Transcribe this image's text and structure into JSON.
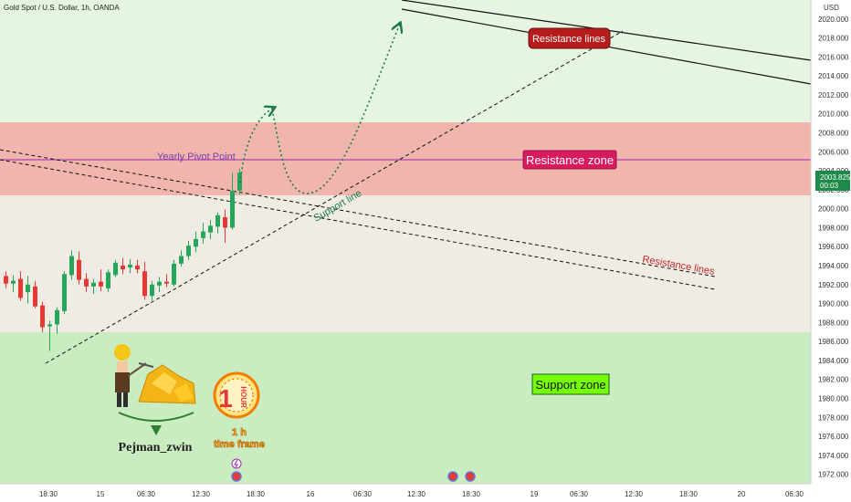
{
  "header": {
    "symbol_title": "Gold Spot / U.S. Dollar, 1h, OANDA",
    "currency": "USD"
  },
  "price_axis": {
    "ticks": [
      "2020.000",
      "2018.000",
      "2016.000",
      "2014.000",
      "2012.000",
      "2010.000",
      "2008.000",
      "2006.000",
      "2004.000",
      "2002.000",
      "2000.000",
      "1998.000",
      "1996.000",
      "1994.000",
      "1992.000",
      "1990.000",
      "1988.000",
      "1986.000",
      "1984.000",
      "1982.000",
      "1980.000",
      "1978.000",
      "1976.000",
      "1974.000",
      "1972.000"
    ],
    "current_price": "2003.825",
    "countdown": "00:03"
  },
  "time_axis": {
    "ticks": [
      "18:30",
      "15",
      "06:30",
      "12:30",
      "18:30",
      "16",
      "06:30",
      "12:30",
      "18:30",
      "19",
      "06:30",
      "12:30",
      "18:30",
      "20",
      "06:30"
    ]
  },
  "annotations": {
    "yearly_pivot": "Yearly Pivot Point",
    "resistance_zone": "Resistance zone",
    "support_zone": "Support zone",
    "resistance_lines_top": "Resistance lines",
    "resistance_lines_lower": "Resistance lines",
    "support_line": "Support line",
    "author": "Pejman_zwin",
    "timeframe_badge_text": "HOUR",
    "timeframe_badge_number": "1",
    "timeframe_caption_1": "1 h",
    "timeframe_caption_2": "time frame"
  },
  "colors": {
    "resistance_zone": "#f0b5ad",
    "support_zone": "#c9ecc0",
    "pivot_line": "#9c27b0",
    "bull_candle": "#26a65b",
    "bear_candle": "#e53935",
    "resistance_label_bg": "#b71c1c",
    "resistance_zone_label_bg": "#d81b60",
    "support_zone_label_bg": "#76ff03",
    "projection": "#1b7a4a"
  },
  "chart_data": {
    "type": "candlestick",
    "instrument": "Gold Spot / U.S. Dollar",
    "interval": "1h",
    "broker": "OANDA",
    "ylim": [
      1971,
      2022
    ],
    "zones": [
      {
        "name": "Resistance zone",
        "from": 2001.9,
        "to": 2009.6
      },
      {
        "name": "Support zone",
        "from": 1971,
        "to": 1987.2
      }
    ],
    "horizontal_lines": [
      {
        "name": "Yearly Pivot Point",
        "price": 2005.6
      }
    ],
    "candles": [
      {
        "o": 1992.9,
        "h": 1993.4,
        "l": 1991.6,
        "c": 1992.1
      },
      {
        "o": 1992.1,
        "h": 1993.0,
        "l": 1991.2,
        "c": 1992.4
      },
      {
        "o": 1992.6,
        "h": 1993.4,
        "l": 1990.3,
        "c": 1990.6
      },
      {
        "o": 1991.2,
        "h": 1992.9,
        "l": 1990.0,
        "c": 1992.0
      },
      {
        "o": 1991.8,
        "h": 1992.4,
        "l": 1989.5,
        "c": 1989.7
      },
      {
        "o": 1989.8,
        "h": 1990.2,
        "l": 1987.0,
        "c": 1987.5
      },
      {
        "o": 1987.6,
        "h": 1988.2,
        "l": 1985.0,
        "c": 1987.8
      },
      {
        "o": 1987.8,
        "h": 1989.6,
        "l": 1986.8,
        "c": 1989.3
      },
      {
        "o": 1989.2,
        "h": 1993.4,
        "l": 1988.9,
        "c": 1993.1
      },
      {
        "o": 1993.0,
        "h": 1995.6,
        "l": 1992.5,
        "c": 1995.0
      },
      {
        "o": 1994.6,
        "h": 1995.5,
        "l": 1992.0,
        "c": 1992.5
      },
      {
        "o": 1992.6,
        "h": 1993.2,
        "l": 1991.2,
        "c": 1991.8
      },
      {
        "o": 1991.8,
        "h": 1992.6,
        "l": 1991.0,
        "c": 1992.2
      },
      {
        "o": 1992.3,
        "h": 1993.6,
        "l": 1991.3,
        "c": 1991.8
      },
      {
        "o": 1991.6,
        "h": 1993.6,
        "l": 1991.2,
        "c": 1993.3
      },
      {
        "o": 1993.0,
        "h": 1994.6,
        "l": 1992.8,
        "c": 1994.3
      },
      {
        "o": 1994.0,
        "h": 1994.8,
        "l": 1993.1,
        "c": 1993.6
      },
      {
        "o": 1993.8,
        "h": 1994.7,
        "l": 1993.2,
        "c": 1994.1
      },
      {
        "o": 1994.0,
        "h": 1994.6,
        "l": 1993.2,
        "c": 1993.6
      },
      {
        "o": 1993.4,
        "h": 1994.4,
        "l": 1990.4,
        "c": 1990.8
      },
      {
        "o": 1990.8,
        "h": 1992.4,
        "l": 1990.3,
        "c": 1992.0
      },
      {
        "o": 1991.9,
        "h": 1992.8,
        "l": 1991.2,
        "c": 1992.3
      },
      {
        "o": 1992.3,
        "h": 1993.1,
        "l": 1991.7,
        "c": 1992.1
      },
      {
        "o": 1992.0,
        "h": 1994.6,
        "l": 1991.8,
        "c": 1994.2
      },
      {
        "o": 1994.2,
        "h": 1995.6,
        "l": 1993.9,
        "c": 1995.0
      },
      {
        "o": 1995.0,
        "h": 1996.6,
        "l": 1994.6,
        "c": 1996.1
      },
      {
        "o": 1996.0,
        "h": 1997.6,
        "l": 1995.4,
        "c": 1996.8
      },
      {
        "o": 1996.9,
        "h": 1998.5,
        "l": 1996.3,
        "c": 1997.6
      },
      {
        "o": 1997.5,
        "h": 1998.8,
        "l": 1996.8,
        "c": 1998.2
      },
      {
        "o": 1998.1,
        "h": 1999.6,
        "l": 1997.4,
        "c": 1999.3
      },
      {
        "o": 1999.1,
        "h": 1999.9,
        "l": 1996.4,
        "c": 1998.0
      },
      {
        "o": 1998.0,
        "h": 2003.8,
        "l": 1997.8,
        "c": 2001.9
      },
      {
        "o": 2001.9,
        "h": 2004.2,
        "l": 2001.5,
        "c": 2003.8
      }
    ],
    "trendlines": [
      {
        "name": "Resistance lines",
        "style": "solid",
        "points": [
          [
            "t0",
            2026.1
          ],
          [
            "t_end",
            2016.1
          ]
        ]
      },
      {
        "name": "Resistance lines",
        "style": "solid",
        "points": [
          [
            "t0",
            2023.0
          ],
          [
            "t_end",
            2013.6
          ]
        ]
      },
      {
        "name": "Support line",
        "style": "dashed",
        "points": [
          [
            "t0",
            1984.5
          ],
          [
            "t_end",
            2019.0
          ]
        ]
      },
      {
        "name": "Resistance lines",
        "style": "dashed",
        "points": [
          [
            "t0",
            2005.6
          ],
          [
            "t_end",
            1993.2
          ]
        ]
      },
      {
        "name": "Resistance lines",
        "style": "dashed",
        "points": [
          [
            "t0",
            2004.8
          ],
          [
            "t_end",
            1991.7
          ]
        ]
      }
    ],
    "projection": {
      "style": "dotted",
      "targets": [
        2011.0,
        2001.8,
        2020.3
      ]
    }
  }
}
